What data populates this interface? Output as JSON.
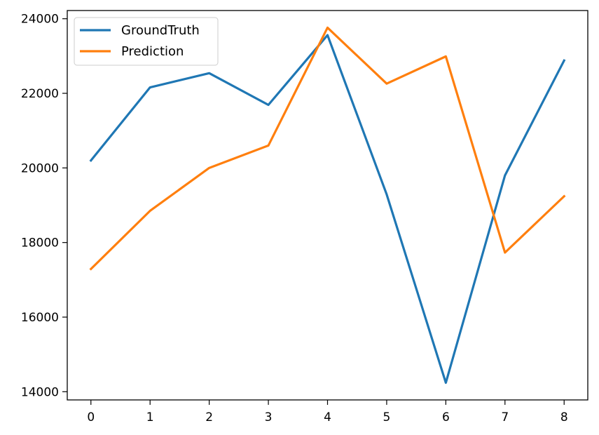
{
  "chart_data": {
    "type": "line",
    "x": [
      0,
      1,
      2,
      3,
      4,
      5,
      6,
      7,
      8
    ],
    "series": [
      {
        "name": "GroundTruth",
        "color": "#1f77b4",
        "values": [
          20200,
          22160,
          22540,
          21690,
          23560,
          19290,
          14240,
          19800,
          22880
        ]
      },
      {
        "name": "Prediction",
        "color": "#ff7f0e",
        "values": [
          17290,
          18850,
          20000,
          20600,
          23760,
          22260,
          22990,
          17730,
          19240
        ]
      }
    ],
    "xlim": [
      -0.4,
      8.4
    ],
    "ylim": [
      13780,
      24220
    ],
    "xticks": [
      0,
      1,
      2,
      3,
      4,
      5,
      6,
      7,
      8
    ],
    "yticks": [
      14000,
      16000,
      18000,
      20000,
      22000,
      24000
    ],
    "title": "",
    "xlabel": "",
    "ylabel": "",
    "legend": {
      "position": "top-left",
      "entries": [
        "GroundTruth",
        "Prediction"
      ]
    },
    "grid": false
  }
}
